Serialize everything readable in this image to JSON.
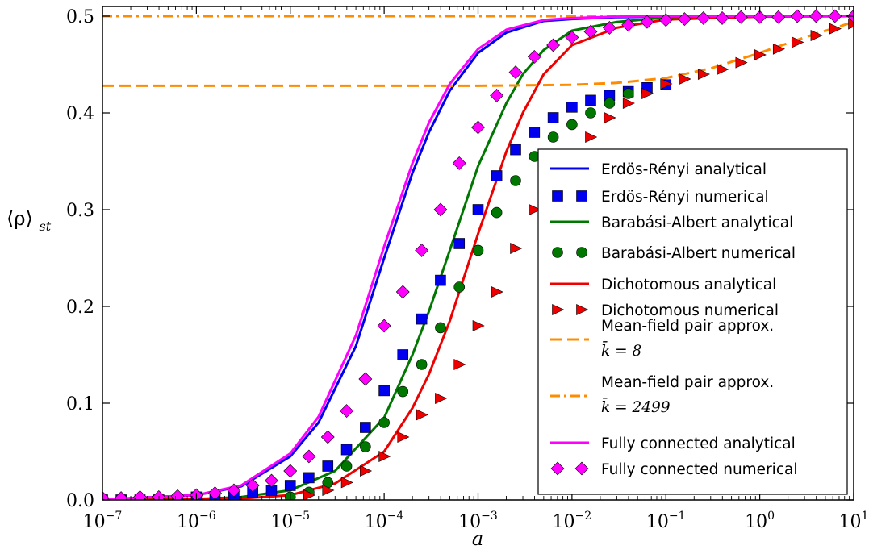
{
  "chart_data": {
    "type": "scatter",
    "title": "",
    "xlabel": "a",
    "ylabel": "⟨ρ⟩",
    "ylabel_subscript": "st",
    "xscale": "log",
    "xlim": [
      1e-07,
      10
    ],
    "ylim": [
      0.0,
      0.51
    ],
    "x_ticks": [
      {
        "base": "10",
        "exp": "−7"
      },
      {
        "base": "10",
        "exp": "−6"
      },
      {
        "base": "10",
        "exp": "−5"
      },
      {
        "base": "10",
        "exp": "−4"
      },
      {
        "base": "10",
        "exp": "−3"
      },
      {
        "base": "10",
        "exp": "−2"
      },
      {
        "base": "10",
        "exp": "−1"
      },
      {
        "base": "10",
        "exp": "0"
      },
      {
        "base": "10",
        "exp": "1"
      }
    ],
    "y_ticks": [
      "0.0",
      "0.1",
      "0.2",
      "0.3",
      "0.4",
      "0.5"
    ],
    "grid": false,
    "legend_position": "right",
    "series": [
      {
        "name": "Erdös-Rényi analytical",
        "style": "line",
        "color": "#0000ee",
        "x": [
          1e-07,
          1e-06,
          3e-06,
          1e-05,
          2e-05,
          5e-05,
          0.0001,
          0.0002,
          0.0003,
          0.0005,
          0.001,
          0.002,
          0.005,
          0.01,
          0.03,
          0.1,
          1,
          10
        ],
        "y": [
          0.0005,
          0.005,
          0.014,
          0.045,
          0.08,
          0.159,
          0.25,
          0.338,
          0.38,
          0.423,
          0.462,
          0.483,
          0.495,
          0.497,
          0.499,
          0.4995,
          0.5,
          0.5
        ]
      },
      {
        "name": "Erdös-Rényi numerical",
        "style": "square",
        "color": "#0000ee",
        "x": [
          1e-07,
          1.58e-07,
          2.51e-07,
          3.98e-07,
          6.31e-07,
          1e-06,
          1.58e-06,
          2.51e-06,
          3.98e-06,
          6.31e-06,
          1e-05,
          1.58e-05,
          2.51e-05,
          3.98e-05,
          6.31e-05,
          0.0001,
          0.000158,
          0.000251,
          0.000398,
          0.000631,
          0.001,
          0.00158,
          0.00251,
          0.00398,
          0.00631,
          0.01,
          0.0158,
          0.0251,
          0.0398,
          0.0631,
          0.1
        ],
        "y": [
          0.0,
          0.0,
          0.0,
          0.0,
          0.001,
          0.003,
          0.003,
          0.005,
          0.008,
          0.01,
          0.015,
          0.023,
          0.035,
          0.052,
          0.075,
          0.113,
          0.15,
          0.187,
          0.227,
          0.265,
          0.3,
          0.335,
          0.362,
          0.38,
          0.395,
          0.406,
          0.413,
          0.418,
          0.422,
          0.426,
          0.429
        ]
      },
      {
        "name": "Barabási-Albert analytical",
        "style": "line",
        "color": "#007700",
        "x": [
          1e-07,
          1e-06,
          3e-06,
          1e-05,
          3e-05,
          0.0001,
          0.0002,
          0.0003,
          0.0005,
          0.001,
          0.002,
          0.003,
          0.005,
          0.01,
          0.03,
          0.1,
          1,
          10
        ],
        "y": [
          0.0,
          0.001,
          0.003,
          0.01,
          0.03,
          0.085,
          0.15,
          0.195,
          0.258,
          0.345,
          0.41,
          0.44,
          0.465,
          0.485,
          0.494,
          0.4985,
          0.4998,
          0.5
        ]
      },
      {
        "name": "Barabási-Albert numerical",
        "style": "circle",
        "color": "#007700",
        "x": [
          1e-05,
          1.58e-05,
          2.51e-05,
          3.98e-05,
          6.31e-05,
          0.0001,
          0.000158,
          0.000251,
          0.000398,
          0.000631,
          0.001,
          0.00158,
          0.00251,
          0.00398,
          0.00631,
          0.01,
          0.0158,
          0.0251,
          0.0398
        ],
        "y": [
          0.003,
          0.008,
          0.018,
          0.035,
          0.055,
          0.08,
          0.112,
          0.14,
          0.178,
          0.22,
          0.258,
          0.297,
          0.33,
          0.355,
          0.375,
          0.388,
          0.4,
          0.41,
          0.42
        ]
      },
      {
        "name": "Dichotomous analytical",
        "style": "line",
        "color": "#ee0000",
        "x": [
          1e-07,
          1e-06,
          3e-06,
          1e-05,
          3e-05,
          0.0001,
          0.0002,
          0.0003,
          0.0005,
          0.001,
          0.002,
          0.003,
          0.005,
          0.01,
          0.03,
          0.1,
          1,
          10
        ],
        "y": [
          0.0,
          0.0005,
          0.0015,
          0.005,
          0.017,
          0.05,
          0.095,
          0.13,
          0.185,
          0.275,
          0.36,
          0.4,
          0.44,
          0.47,
          0.488,
          0.4965,
          0.4995,
          0.5
        ]
      },
      {
        "name": "Dichotomous numerical",
        "style": "triangle",
        "color": "#ee0000",
        "x": [
          1.58e-05,
          2.51e-05,
          3.98e-05,
          6.31e-05,
          0.0001,
          0.000158,
          0.000251,
          0.000398,
          0.000631,
          0.001,
          0.00158,
          0.00251,
          0.00398,
          0.00631,
          0.01,
          0.0158,
          0.0251,
          0.0398,
          0.0631,
          0.1,
          0.158,
          0.251,
          0.398,
          0.631,
          1,
          1.58,
          2.51,
          3.98,
          6.31,
          10
        ],
        "y": [
          0.005,
          0.01,
          0.018,
          0.03,
          0.045,
          0.065,
          0.088,
          0.105,
          0.14,
          0.18,
          0.215,
          0.26,
          0.3,
          0.33,
          0.355,
          0.375,
          0.395,
          0.41,
          0.42,
          0.43,
          0.435,
          0.44,
          0.445,
          0.452,
          0.46,
          0.466,
          0.473,
          0.48,
          0.487,
          0.492
        ]
      },
      {
        "name": "Mean-field pair approx.",
        "name_sub": "k̄ = 8",
        "style": "dashed",
        "color": "#ff8c00",
        "x": [
          1e-07,
          1e-05,
          0.001,
          0.01,
          0.03,
          0.1,
          0.3,
          1,
          3,
          10
        ],
        "y": [
          0.428,
          0.428,
          0.428,
          0.429,
          0.431,
          0.436,
          0.446,
          0.462,
          0.478,
          0.494
        ]
      },
      {
        "name": "Mean-field pair approx.",
        "name_sub": "k̄ = 2499",
        "style": "dashdot",
        "color": "#ff8c00",
        "x": [
          1e-07,
          10
        ],
        "y": [
          0.5,
          0.5
        ]
      },
      {
        "name": "Fully connected analytical",
        "style": "line",
        "color": "#ff00ff",
        "x": [
          1e-07,
          1e-06,
          3e-06,
          1e-05,
          2e-05,
          5e-05,
          0.0001,
          0.0002,
          0.0003,
          0.0005,
          0.001,
          0.002,
          0.005,
          0.01,
          0.03,
          0.1,
          1,
          10
        ],
        "y": [
          0.0005,
          0.005,
          0.015,
          0.048,
          0.086,
          0.17,
          0.262,
          0.348,
          0.39,
          0.43,
          0.466,
          0.486,
          0.496,
          0.498,
          0.4995,
          0.5,
          0.5,
          0.5
        ]
      },
      {
        "name": "Fully connected numerical",
        "style": "diamond",
        "color": "#ff00ff",
        "x": [
          1e-07,
          1.58e-07,
          2.51e-07,
          3.98e-07,
          6.31e-07,
          1e-06,
          1.58e-06,
          2.51e-06,
          3.98e-06,
          6.31e-06,
          1e-05,
          1.58e-05,
          2.51e-05,
          3.98e-05,
          6.31e-05,
          0.0001,
          0.000158,
          0.000251,
          0.000398,
          0.000631,
          0.001,
          0.00158,
          0.00251,
          0.00398,
          0.00631,
          0.01,
          0.0158,
          0.0251,
          0.0398,
          0.0631,
          0.1,
          0.158,
          0.251,
          0.398,
          0.631,
          1,
          1.58,
          2.51,
          3.98,
          6.31,
          10
        ],
        "y": [
          0.002,
          0.002,
          0.003,
          0.003,
          0.004,
          0.005,
          0.007,
          0.01,
          0.015,
          0.02,
          0.03,
          0.045,
          0.065,
          0.092,
          0.125,
          0.18,
          0.215,
          0.258,
          0.3,
          0.348,
          0.385,
          0.418,
          0.442,
          0.458,
          0.47,
          0.478,
          0.484,
          0.488,
          0.491,
          0.494,
          0.496,
          0.497,
          0.498,
          0.498,
          0.499,
          0.499,
          0.499,
          0.5,
          0.5,
          0.5,
          0.5
        ]
      }
    ]
  }
}
